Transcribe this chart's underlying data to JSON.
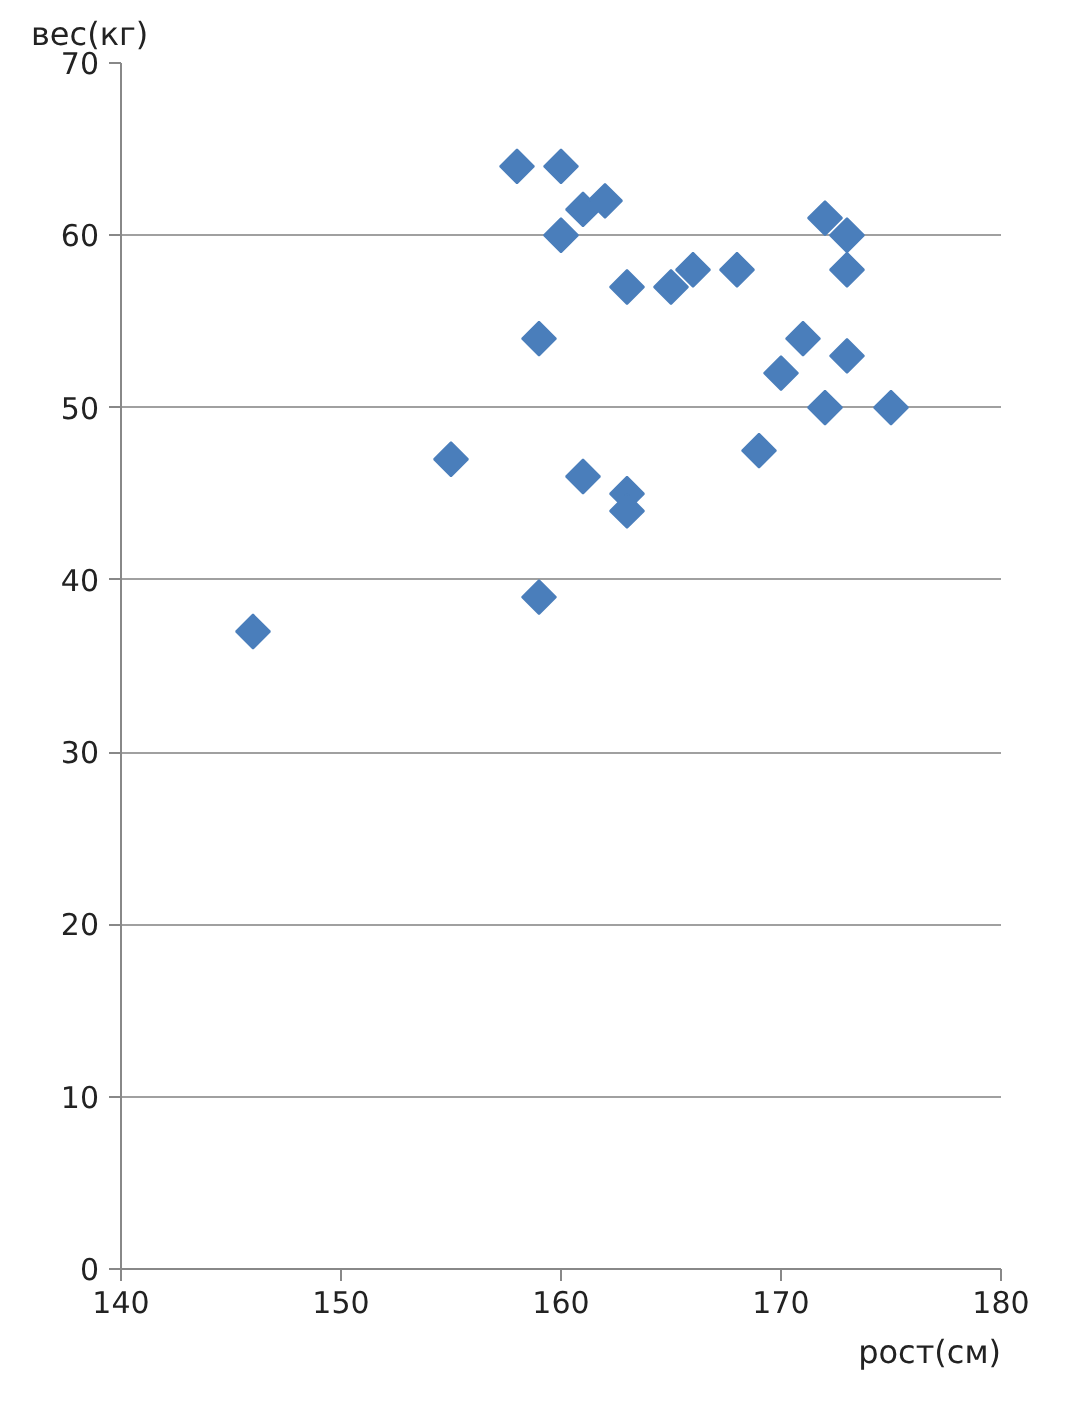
{
  "chart_data": {
    "type": "scatter",
    "xlabel": "рост(см)",
    "ylabel": "вес(кг)",
    "x": [
      146,
      155,
      158,
      159,
      159,
      160,
      160,
      161,
      161,
      162,
      163,
      163,
      163,
      165,
      166,
      168,
      169,
      170,
      171,
      172,
      172,
      173,
      173,
      173,
      175
    ],
    "values": [
      37,
      47,
      64,
      54,
      39,
      64,
      60,
      61.5,
      46,
      62,
      57,
      45,
      44,
      57,
      58,
      58,
      47.5,
      52,
      54,
      61,
      50,
      60,
      58,
      53,
      50
    ],
    "color": "#4a7ebb",
    "marker": "diamond",
    "xlim": [
      140,
      180
    ],
    "xticks": [
      140,
      150,
      160,
      170,
      180
    ],
    "ylim": [
      0,
      70
    ],
    "yticks": [
      0,
      10,
      20,
      30,
      40,
      50,
      60,
      70
    ],
    "grid": "y"
  }
}
